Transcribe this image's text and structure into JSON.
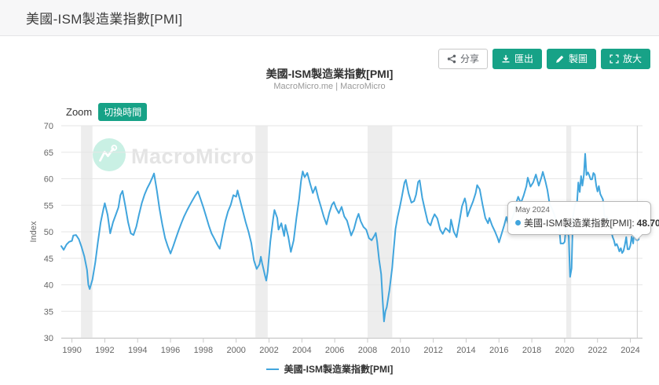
{
  "page": {
    "title": "美國-ISM製造業指數[PMI]"
  },
  "toolbar": {
    "share_label": "分享",
    "export_label": "匯出",
    "draw_label": "製圖",
    "enlarge_label": "放大"
  },
  "zoom_control": {
    "label": "Zoom",
    "button": "切換時間"
  },
  "watermark": {
    "text": "MacroMicro"
  },
  "tooltip": {
    "date": "May 2024",
    "label": "美國-ISM製造業指數[PMI]:",
    "value": "48.70"
  },
  "legend": {
    "series_label": "美國-ISM製造業指數[PMI]"
  },
  "colors": {
    "accent": "#17a287",
    "line": "#41a5dd",
    "band": "#ededed",
    "grid": "#e6e6e6",
    "axis": "#c9c9c9",
    "crosshair": "#cccccc",
    "tick_text": "#666666"
  },
  "chart_data": {
    "type": "line",
    "title": "美國-ISM製造業指數[PMI]",
    "subtitle": "MacroMicro.me | MacroMicro",
    "xlabel": "",
    "ylabel": "Index",
    "ylim": [
      30,
      70
    ],
    "xlim": [
      1989.35,
      2024.5
    ],
    "y_ticks": [
      30,
      35,
      40,
      45,
      50,
      55,
      60,
      65,
      70
    ],
    "x_ticks": [
      1990,
      1992,
      1994,
      1996,
      1998,
      2000,
      2002,
      2004,
      2006,
      2008,
      2010,
      2012,
      2014,
      2016,
      2018,
      2020,
      2022,
      2024
    ],
    "grid": "horizontal",
    "legend_position": "bottom",
    "recession_bands": [
      [
        1990.55,
        1991.25
      ],
      [
        2001.17,
        2001.92
      ],
      [
        2008.0,
        2009.5
      ],
      [
        2020.1,
        2020.4
      ]
    ],
    "hover_point": {
      "x": 2024.42,
      "y": 48.7,
      "date": "May 2024",
      "value_label": "48.70"
    },
    "series": [
      {
        "name": "美國-ISM製造業指數[PMI]",
        "color": "#41a5dd",
        "points": [
          [
            1989.35,
            47.3
          ],
          [
            1989.5,
            46.6
          ],
          [
            1989.67,
            47.6
          ],
          [
            1989.83,
            48.1
          ],
          [
            1990.0,
            48.3
          ],
          [
            1990.08,
            49.3
          ],
          [
            1990.25,
            49.4
          ],
          [
            1990.42,
            48.6
          ],
          [
            1990.58,
            47.2
          ],
          [
            1990.75,
            45.4
          ],
          [
            1990.92,
            42.8
          ],
          [
            1991.0,
            40.0
          ],
          [
            1991.08,
            39.2
          ],
          [
            1991.25,
            41.0
          ],
          [
            1991.42,
            44.2
          ],
          [
            1991.58,
            48.0
          ],
          [
            1991.75,
            51.8
          ],
          [
            1991.92,
            54.3
          ],
          [
            1992.0,
            55.4
          ],
          [
            1992.17,
            53.2
          ],
          [
            1992.33,
            49.7
          ],
          [
            1992.5,
            51.8
          ],
          [
            1992.67,
            53.2
          ],
          [
            1992.83,
            54.6
          ],
          [
            1992.95,
            56.9
          ],
          [
            1993.08,
            57.7
          ],
          [
            1993.25,
            54.8
          ],
          [
            1993.42,
            51.8
          ],
          [
            1993.58,
            49.7
          ],
          [
            1993.75,
            49.4
          ],
          [
            1993.92,
            51.0
          ],
          [
            1994.08,
            53.2
          ],
          [
            1994.25,
            55.4
          ],
          [
            1994.42,
            57.0
          ],
          [
            1994.58,
            58.2
          ],
          [
            1994.75,
            59.2
          ],
          [
            1994.92,
            60.4
          ],
          [
            1995.0,
            61.0
          ],
          [
            1995.17,
            57.8
          ],
          [
            1995.33,
            54.4
          ],
          [
            1995.5,
            51.4
          ],
          [
            1995.67,
            48.8
          ],
          [
            1995.83,
            47.3
          ],
          [
            1996.0,
            45.9
          ],
          [
            1996.17,
            47.3
          ],
          [
            1996.33,
            48.8
          ],
          [
            1996.5,
            50.3
          ],
          [
            1996.67,
            51.7
          ],
          [
            1996.83,
            52.9
          ],
          [
            1997.0,
            54.0
          ],
          [
            1997.17,
            55.0
          ],
          [
            1997.33,
            55.9
          ],
          [
            1997.5,
            56.8
          ],
          [
            1997.67,
            57.6
          ],
          [
            1997.83,
            56.2
          ],
          [
            1998.0,
            54.6
          ],
          [
            1998.17,
            52.9
          ],
          [
            1998.33,
            51.2
          ],
          [
            1998.5,
            49.7
          ],
          [
            1998.67,
            48.7
          ],
          [
            1998.83,
            47.7
          ],
          [
            1999.0,
            46.8
          ],
          [
            1999.17,
            49.4
          ],
          [
            1999.33,
            51.9
          ],
          [
            1999.5,
            53.8
          ],
          [
            1999.67,
            55.1
          ],
          [
            1999.83,
            56.9
          ],
          [
            2000.0,
            56.6
          ],
          [
            2000.08,
            57.8
          ],
          [
            2000.25,
            55.8
          ],
          [
            2000.42,
            53.7
          ],
          [
            2000.58,
            51.8
          ],
          [
            2000.75,
            50.0
          ],
          [
            2000.92,
            47.9
          ],
          [
            2001.08,
            44.6
          ],
          [
            2001.25,
            43.0
          ],
          [
            2001.42,
            43.9
          ],
          [
            2001.5,
            45.3
          ],
          [
            2001.58,
            44.1
          ],
          [
            2001.75,
            41.8
          ],
          [
            2001.83,
            40.8
          ],
          [
            2001.92,
            42.5
          ],
          [
            2002.08,
            48.2
          ],
          [
            2002.25,
            52.4
          ],
          [
            2002.33,
            54.1
          ],
          [
            2002.5,
            52.6
          ],
          [
            2002.58,
            50.4
          ],
          [
            2002.75,
            51.6
          ],
          [
            2002.92,
            49.2
          ],
          [
            2003.0,
            51.3
          ],
          [
            2003.17,
            49.1
          ],
          [
            2003.33,
            46.2
          ],
          [
            2003.5,
            48.4
          ],
          [
            2003.67,
            52.6
          ],
          [
            2003.83,
            56.2
          ],
          [
            2003.95,
            59.6
          ],
          [
            2004.05,
            61.4
          ],
          [
            2004.17,
            60.3
          ],
          [
            2004.33,
            61.1
          ],
          [
            2004.5,
            59.1
          ],
          [
            2004.67,
            57.3
          ],
          [
            2004.83,
            58.5
          ],
          [
            2005.0,
            56.4
          ],
          [
            2005.17,
            54.6
          ],
          [
            2005.33,
            52.9
          ],
          [
            2005.5,
            51.4
          ],
          [
            2005.67,
            53.6
          ],
          [
            2005.83,
            55.1
          ],
          [
            2005.95,
            55.6
          ],
          [
            2006.08,
            54.5
          ],
          [
            2006.25,
            53.5
          ],
          [
            2006.42,
            54.7
          ],
          [
            2006.58,
            52.9
          ],
          [
            2006.75,
            52.1
          ],
          [
            2006.92,
            50.2
          ],
          [
            2007.0,
            49.3
          ],
          [
            2007.17,
            50.5
          ],
          [
            2007.33,
            52.4
          ],
          [
            2007.45,
            53.4
          ],
          [
            2007.58,
            52.0
          ],
          [
            2007.75,
            50.9
          ],
          [
            2007.92,
            50.4
          ],
          [
            2008.08,
            48.8
          ],
          [
            2008.25,
            48.4
          ],
          [
            2008.42,
            49.3
          ],
          [
            2008.5,
            49.8
          ],
          [
            2008.58,
            48.2
          ],
          [
            2008.7,
            44.8
          ],
          [
            2008.83,
            42.0
          ],
          [
            2008.92,
            37.0
          ],
          [
            2009.0,
            33.1
          ],
          [
            2009.08,
            35.0
          ],
          [
            2009.17,
            35.8
          ],
          [
            2009.33,
            39.0
          ],
          [
            2009.5,
            43.2
          ],
          [
            2009.58,
            46.3
          ],
          [
            2009.7,
            50.5
          ],
          [
            2009.83,
            52.8
          ],
          [
            2009.95,
            54.5
          ],
          [
            2010.08,
            56.5
          ],
          [
            2010.25,
            59.3
          ],
          [
            2010.33,
            59.8
          ],
          [
            2010.5,
            57.2
          ],
          [
            2010.67,
            55.5
          ],
          [
            2010.83,
            55.8
          ],
          [
            2010.95,
            57.0
          ],
          [
            2011.08,
            59.4
          ],
          [
            2011.17,
            59.7
          ],
          [
            2011.33,
            56.4
          ],
          [
            2011.5,
            54.0
          ],
          [
            2011.67,
            51.8
          ],
          [
            2011.83,
            51.2
          ],
          [
            2011.95,
            52.4
          ],
          [
            2012.08,
            53.3
          ],
          [
            2012.25,
            52.5
          ],
          [
            2012.42,
            50.4
          ],
          [
            2012.58,
            49.6
          ],
          [
            2012.75,
            50.7
          ],
          [
            2012.92,
            50.2
          ],
          [
            2013.0,
            49.9
          ],
          [
            2013.08,
            52.3
          ],
          [
            2013.25,
            50.0
          ],
          [
            2013.42,
            49.0
          ],
          [
            2013.58,
            51.8
          ],
          [
            2013.75,
            54.8
          ],
          [
            2013.92,
            56.3
          ],
          [
            2014.0,
            55.3
          ],
          [
            2014.08,
            52.9
          ],
          [
            2014.25,
            54.4
          ],
          [
            2014.42,
            55.7
          ],
          [
            2014.58,
            57.3
          ],
          [
            2014.67,
            58.8
          ],
          [
            2014.83,
            58.0
          ],
          [
            2015.0,
            55.1
          ],
          [
            2015.17,
            52.6
          ],
          [
            2015.33,
            51.6
          ],
          [
            2015.42,
            52.6
          ],
          [
            2015.58,
            51.2
          ],
          [
            2015.75,
            50.1
          ],
          [
            2015.92,
            48.8
          ],
          [
            2016.0,
            48.0
          ],
          [
            2016.17,
            49.7
          ],
          [
            2016.33,
            51.4
          ],
          [
            2016.45,
            52.8
          ],
          [
            2016.58,
            51.2
          ],
          [
            2016.75,
            52.1
          ],
          [
            2016.92,
            53.5
          ],
          [
            2017.0,
            55.0
          ],
          [
            2017.17,
            56.6
          ],
          [
            2017.33,
            55.4
          ],
          [
            2017.5,
            56.8
          ],
          [
            2017.67,
            58.6
          ],
          [
            2017.75,
            60.2
          ],
          [
            2017.92,
            58.5
          ],
          [
            2018.08,
            59.3
          ],
          [
            2018.25,
            60.8
          ],
          [
            2018.42,
            58.7
          ],
          [
            2018.58,
            60.2
          ],
          [
            2018.67,
            61.3
          ],
          [
            2018.83,
            59.5
          ],
          [
            2018.95,
            57.9
          ],
          [
            2019.08,
            55.3
          ],
          [
            2019.25,
            54.2
          ],
          [
            2019.42,
            52.8
          ],
          [
            2019.58,
            51.6
          ],
          [
            2019.7,
            49.8
          ],
          [
            2019.75,
            47.8
          ],
          [
            2019.92,
            47.8
          ],
          [
            2020.0,
            48.1
          ],
          [
            2020.08,
            50.9
          ],
          [
            2020.17,
            50.1
          ],
          [
            2020.25,
            49.1
          ],
          [
            2020.33,
            41.5
          ],
          [
            2020.42,
            43.1
          ],
          [
            2020.5,
            52.6
          ],
          [
            2020.58,
            54.2
          ],
          [
            2020.67,
            55.6
          ],
          [
            2020.75,
            55.4
          ],
          [
            2020.83,
            59.3
          ],
          [
            2020.92,
            57.5
          ],
          [
            2021.0,
            60.5
          ],
          [
            2021.08,
            58.7
          ],
          [
            2021.17,
            60.8
          ],
          [
            2021.25,
            64.7
          ],
          [
            2021.33,
            60.7
          ],
          [
            2021.42,
            61.2
          ],
          [
            2021.5,
            60.6
          ],
          [
            2021.58,
            59.9
          ],
          [
            2021.67,
            59.9
          ],
          [
            2021.75,
            61.1
          ],
          [
            2021.83,
            60.8
          ],
          [
            2021.92,
            58.7
          ],
          [
            2022.0,
            57.6
          ],
          [
            2022.08,
            58.6
          ],
          [
            2022.17,
            57.1
          ],
          [
            2022.33,
            56.1
          ],
          [
            2022.42,
            53.0
          ],
          [
            2022.5,
            52.8
          ],
          [
            2022.58,
            52.8
          ],
          [
            2022.67,
            52.2
          ],
          [
            2022.75,
            50.9
          ],
          [
            2022.83,
            50.2
          ],
          [
            2022.92,
            49.0
          ],
          [
            2023.0,
            48.4
          ],
          [
            2023.08,
            47.4
          ],
          [
            2023.17,
            47.7
          ],
          [
            2023.25,
            47.1
          ],
          [
            2023.33,
            46.3
          ],
          [
            2023.42,
            46.9
          ],
          [
            2023.5,
            46.0
          ],
          [
            2023.58,
            46.4
          ],
          [
            2023.67,
            47.6
          ],
          [
            2023.75,
            49.0
          ],
          [
            2023.83,
            46.7
          ],
          [
            2023.92,
            46.7
          ],
          [
            2024.0,
            47.4
          ],
          [
            2024.08,
            49.1
          ],
          [
            2024.17,
            47.8
          ],
          [
            2024.25,
            50.3
          ],
          [
            2024.33,
            49.2
          ],
          [
            2024.42,
            48.7
          ]
        ]
      }
    ]
  }
}
